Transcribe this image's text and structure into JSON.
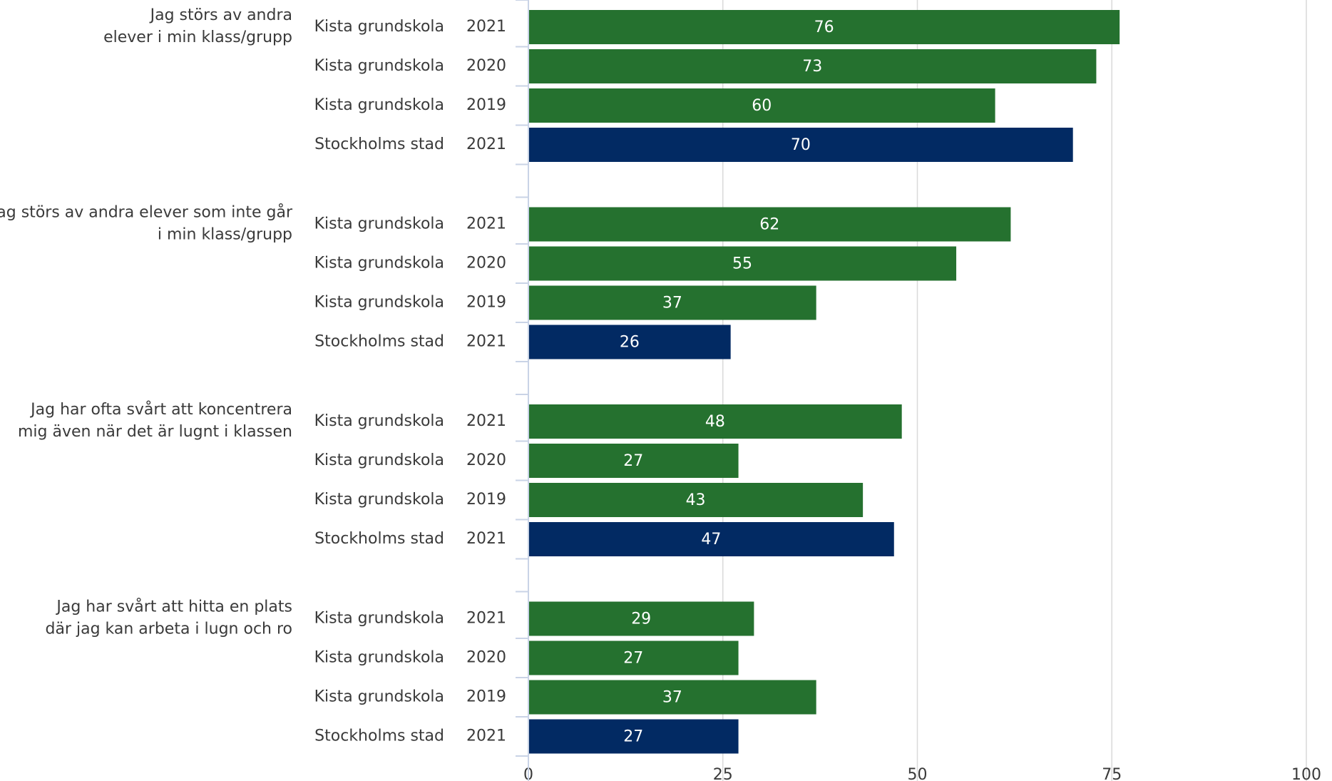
{
  "chart_data": {
    "type": "bar",
    "orientation": "horizontal",
    "xlim": [
      0,
      100
    ],
    "x_ticks": [
      "0",
      "25",
      "50",
      "75",
      "100"
    ],
    "grid": "vertical",
    "colors": {
      "Kista grundskola": "#25712f",
      "Stockholms stad": "#022a63"
    },
    "groups": [
      {
        "question": [
          "Jag störs av andra",
          "elever i min klass/grupp"
        ],
        "rows": [
          {
            "unit": "Kista grundskola",
            "year": "2021",
            "value": 76
          },
          {
            "unit": "Kista grundskola",
            "year": "2020",
            "value": 73
          },
          {
            "unit": "Kista grundskola",
            "year": "2019",
            "value": 60
          },
          {
            "unit": "Stockholms stad",
            "year": "2021",
            "value": 70
          }
        ]
      },
      {
        "question": [
          "Jag störs av andra elever som inte går",
          "i min klass/grupp"
        ],
        "rows": [
          {
            "unit": "Kista grundskola",
            "year": "2021",
            "value": 62
          },
          {
            "unit": "Kista grundskola",
            "year": "2020",
            "value": 55
          },
          {
            "unit": "Kista grundskola",
            "year": "2019",
            "value": 37
          },
          {
            "unit": "Stockholms stad",
            "year": "2021",
            "value": 26
          }
        ]
      },
      {
        "question": [
          "Jag har ofta svårt att koncentrera",
          "mig även när det är lugnt i klassen"
        ],
        "rows": [
          {
            "unit": "Kista grundskola",
            "year": "2021",
            "value": 48
          },
          {
            "unit": "Kista grundskola",
            "year": "2020",
            "value": 27
          },
          {
            "unit": "Kista grundskola",
            "year": "2019",
            "value": 43
          },
          {
            "unit": "Stockholms stad",
            "year": "2021",
            "value": 47
          }
        ]
      },
      {
        "question": [
          "Jag har svårt att hitta en plats",
          "där jag kan arbeta i lugn och ro"
        ],
        "rows": [
          {
            "unit": "Kista grundskola",
            "year": "2021",
            "value": 29
          },
          {
            "unit": "Kista grundskola",
            "year": "2020",
            "value": 27
          },
          {
            "unit": "Kista grundskola",
            "year": "2019",
            "value": 37
          },
          {
            "unit": "Stockholms stad",
            "year": "2021",
            "value": 27
          }
        ]
      }
    ]
  }
}
